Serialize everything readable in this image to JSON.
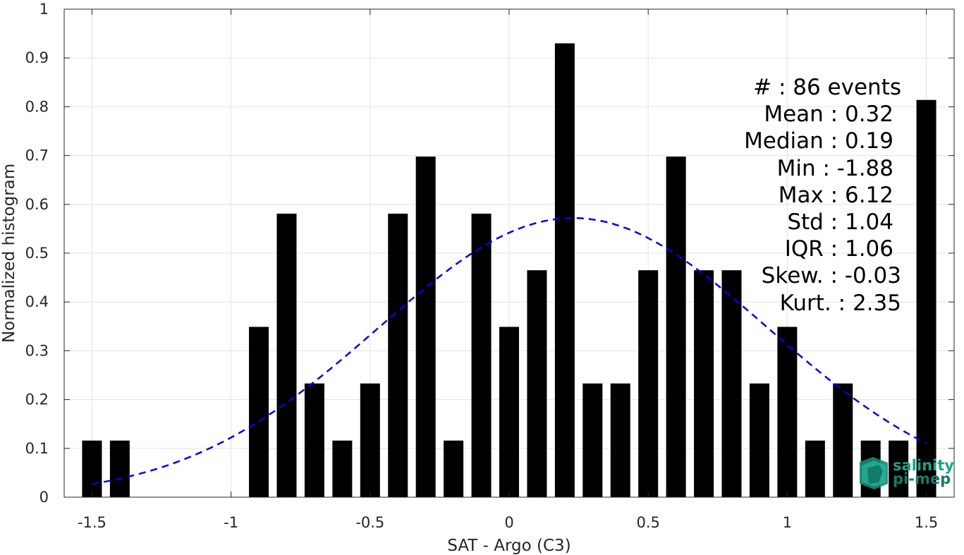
{
  "chart_data": {
    "type": "bar",
    "xlabel": "SAT - Argo (C3)",
    "ylabel": "Normalized histogram",
    "xlim": [
      -1.6,
      1.6
    ],
    "ylim": [
      0,
      1
    ],
    "x_ticks": [
      -1.5,
      -1,
      -0.5,
      0,
      0.5,
      1,
      1.5
    ],
    "x_tick_labels": [
      "-1.5",
      "-1",
      "-0.5",
      "0",
      "0.5",
      "1",
      "1.5"
    ],
    "y_ticks": [
      0,
      0.1,
      0.2,
      0.3,
      0.4,
      0.5,
      0.6,
      0.7,
      0.8,
      0.9,
      1
    ],
    "y_tick_labels": [
      "0",
      "0.1",
      "0.2",
      "0.3",
      "0.4",
      "0.5",
      "0.6",
      "0.7",
      "0.8",
      "0.9",
      "1"
    ],
    "grid": true,
    "bar_color": "#000000",
    "bins": {
      "x": [
        -1.5,
        -1.4,
        -1.3,
        -1.2,
        -1.1,
        -1.0,
        -0.9,
        -0.8,
        -0.7,
        -0.6,
        -0.5,
        -0.4,
        -0.3,
        -0.2,
        -0.1,
        0.0,
        0.1,
        0.2,
        0.3,
        0.4,
        0.5,
        0.6,
        0.7,
        0.8,
        0.9,
        1.0,
        1.1,
        1.2,
        1.3,
        1.4,
        1.5
      ],
      "values": [
        0.116,
        0.116,
        0,
        0,
        0,
        0,
        0.349,
        0.581,
        0.233,
        0.116,
        0.233,
        0.581,
        0.698,
        0.116,
        0.581,
        0.349,
        0.465,
        0.93,
        0.233,
        0.233,
        0.465,
        0.698,
        0.465,
        0.465,
        0.233,
        0.349,
        0.116,
        0.233,
        0.116,
        0.116,
        0.814
      ]
    },
    "fit_curve": {
      "style": "dashed",
      "color": "#0000ee",
      "mean": 0.23,
      "std": 0.7,
      "amplitude": 0.572,
      "x_range": [
        -1.5,
        1.5
      ]
    },
    "stats": [
      "#  : 86 events",
      "Mean : 0.32",
      "Median : 0.19",
      "Min : -1.88",
      "Max : 6.12",
      "Std : 1.04",
      "IQR : 1.06",
      "Skew. : -0.03",
      "Kurt. : 2.35"
    ]
  },
  "logo": {
    "line1": "salinity",
    "line2": "pi-mep",
    "color": "#1aa38a"
  }
}
